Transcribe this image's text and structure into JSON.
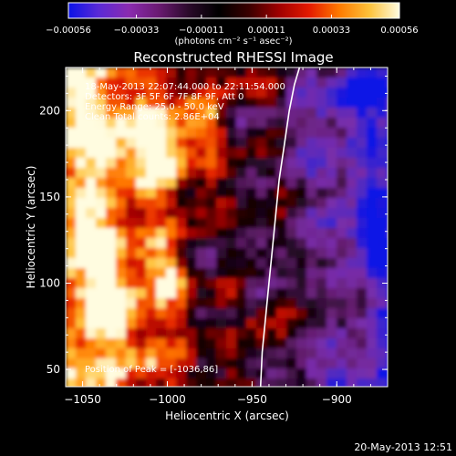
{
  "chart_data": {
    "type": "heatmap",
    "title": "Reconstructed RHESSI Image",
    "xlabel": "Heliocentric X (arcsec)",
    "ylabel": "Heliocentric Y (arcsec)",
    "xlim": [
      -1060,
      -870
    ],
    "ylim": [
      40,
      225
    ],
    "x_ticks": [
      {
        "value": -1050,
        "label": "−1050"
      },
      {
        "value": -1000,
        "label": "−1000"
      },
      {
        "value": -950,
        "label": "−950"
      },
      {
        "value": -900,
        "label": "−900"
      }
    ],
    "y_ticks": [
      {
        "value": 50,
        "label": "50"
      },
      {
        "value": 100,
        "label": "100"
      },
      {
        "value": 150,
        "label": "150"
      },
      {
        "value": 200,
        "label": "200"
      }
    ],
    "colorbar": {
      "min": -0.00056,
      "max": 0.00056,
      "unit_label": "(photons cm⁻² s⁻¹ asec⁻²)",
      "ticks": [
        {
          "value": -0.00056,
          "label": "−0.00056"
        },
        {
          "value": -0.00033,
          "label": "−0.00033"
        },
        {
          "value": -0.00011,
          "label": "−0.00011"
        },
        {
          "value": 0.00011,
          "label": "0.00011"
        },
        {
          "value": 0.00033,
          "label": "0.00033"
        },
        {
          "value": 0.00056,
          "label": "0.00056"
        }
      ],
      "colors": [
        "#0a12e6",
        "#5a2ad6",
        "#8a2bb0",
        "#6a1a72",
        "#2a0a2a",
        "#000000",
        "#3a0000",
        "#a00000",
        "#e41a00",
        "#ff7a00",
        "#ffc23a",
        "#fffce0"
      ]
    },
    "annotations": {
      "time_range": "18-May-2013 22:07:44.000 to 22:11:54.000",
      "detectors": "Detectors: 3F 5F 6F 7F 8F 9F, Att 0",
      "energy_range": "Energy Range: 25.0 - 50.0 keV",
      "clean": "Clean    Total counts: 2.86E+04",
      "peak": "Position of Peak = [-1036,86]"
    },
    "peak_position": [
      -1036,
      86
    ],
    "limb_curve": [
      [
        -945,
        40
      ],
      [
        -944,
        60
      ],
      [
        -942,
        80
      ],
      [
        -940,
        100
      ],
      [
        -938,
        120
      ],
      [
        -936,
        140
      ],
      [
        -934,
        160
      ],
      [
        -931,
        180
      ],
      [
        -928,
        200
      ],
      [
        -925,
        215
      ],
      [
        -922,
        225
      ]
    ],
    "grid": "off",
    "legend": "none"
  },
  "footer": {
    "date": "20-May-2013 12:51"
  }
}
